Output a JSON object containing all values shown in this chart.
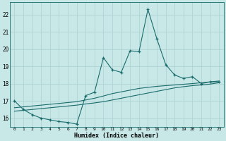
{
  "xlabel": "Humidex (Indice chaleur)",
  "background_color": "#c8e8e8",
  "grid_color": "#b0d4d4",
  "line_color": "#1a6b6b",
  "xlim": [
    -0.5,
    23.5
  ],
  "ylim": [
    15.5,
    22.7
  ],
  "x": [
    0,
    1,
    2,
    3,
    4,
    5,
    6,
    7,
    8,
    9,
    10,
    11,
    12,
    13,
    14,
    15,
    16,
    17,
    18,
    19,
    20,
    21,
    22,
    23
  ],
  "y_main": [
    17.0,
    16.5,
    16.2,
    16.0,
    15.9,
    15.8,
    15.75,
    15.65,
    17.3,
    17.5,
    19.5,
    18.8,
    18.65,
    19.9,
    19.85,
    22.3,
    20.6,
    19.1,
    18.5,
    18.3,
    18.4,
    18.0,
    18.1,
    18.1
  ],
  "y_trend1": [
    16.4,
    16.45,
    16.5,
    16.55,
    16.6,
    16.65,
    16.7,
    16.75,
    16.82,
    16.88,
    16.95,
    17.05,
    17.15,
    17.25,
    17.35,
    17.45,
    17.55,
    17.65,
    17.75,
    17.82,
    17.88,
    17.92,
    17.97,
    18.05
  ],
  "y_trend2": [
    16.6,
    16.65,
    16.7,
    16.75,
    16.8,
    16.85,
    16.9,
    16.95,
    17.05,
    17.15,
    17.28,
    17.42,
    17.52,
    17.62,
    17.72,
    17.78,
    17.84,
    17.88,
    17.92,
    17.96,
    18.0,
    18.05,
    18.1,
    18.15
  ],
  "yticks": [
    16,
    17,
    18,
    19,
    20,
    21,
    22
  ],
  "xticks": [
    0,
    1,
    2,
    3,
    4,
    5,
    6,
    7,
    8,
    9,
    10,
    11,
    12,
    13,
    14,
    15,
    16,
    17,
    18,
    19,
    20,
    21,
    22,
    23
  ],
  "marker": "+",
  "markersize": 3.5,
  "linewidth": 0.8
}
